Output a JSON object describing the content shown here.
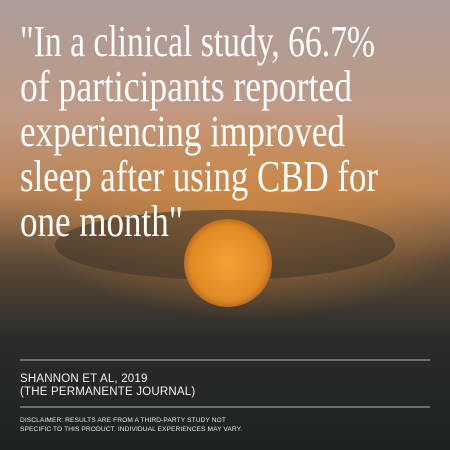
{
  "quote": {
    "lines": [
      "\"In a clinical study, 66.7%",
      "of participants reported",
      "experiencing improved",
      "sleep after using CBD for",
      "one month\""
    ]
  },
  "citation": {
    "lines": [
      "SHANNON ET AL, 2019",
      "(THE PERMANENTE JOURNAL)"
    ]
  },
  "disclaimer": {
    "lines": [
      "DISCLAIMER: RESULTS ARE FROM A THIRD-PARTY STUDY NOT",
      "SPECIFIC TO THIS PRODUCT. INDIVIDUAL EXPERIENCES MAY VARY."
    ]
  }
}
